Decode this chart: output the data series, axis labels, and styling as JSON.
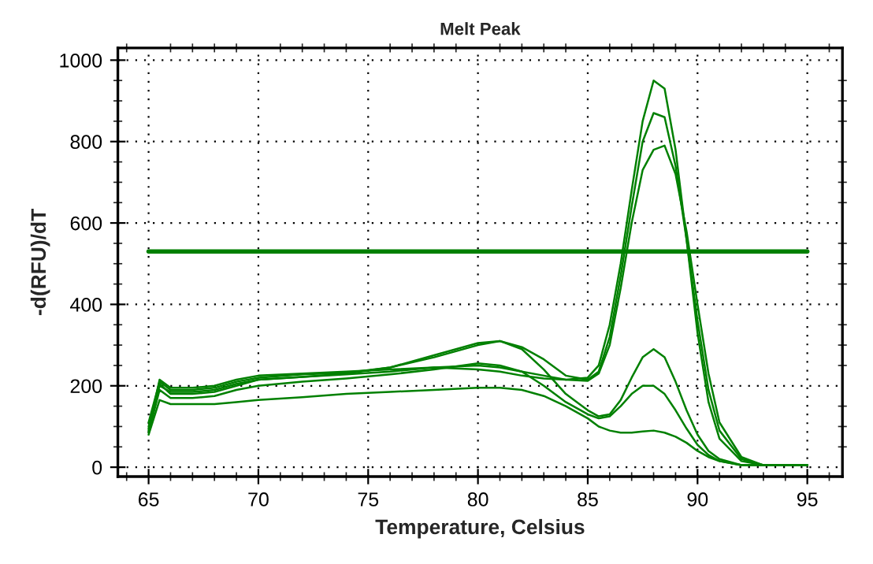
{
  "chart_data": {
    "type": "line",
    "title": "Melt Peak",
    "xlabel": "Temperature, Celsius",
    "ylabel": "-d(RFU)/dT",
    "x": [
      65,
      65.5,
      66,
      67,
      68,
      69,
      70,
      72,
      74,
      76,
      78,
      80,
      81,
      82,
      83,
      84,
      85,
      85.5,
      86,
      86.5,
      87,
      87.5,
      88,
      88.5,
      89,
      89.5,
      90,
      90.5,
      91,
      92,
      93,
      94,
      95
    ],
    "series": [
      {
        "color": "#008000",
        "values": [
          90,
          215,
          195,
          195,
          200,
          215,
          225,
          230,
          235,
          240,
          245,
          240,
          235,
          225,
          218,
          215,
          220,
          250,
          350,
          500,
          680,
          850,
          950,
          930,
          780,
          560,
          330,
          160,
          70,
          15,
          5,
          5,
          5
        ]
      },
      {
        "color": "#008000",
        "values": [
          110,
          210,
          190,
          190,
          195,
          210,
          220,
          228,
          232,
          245,
          270,
          300,
          310,
          295,
          265,
          225,
          215,
          235,
          320,
          470,
          640,
          800,
          870,
          860,
          740,
          560,
          360,
          190,
          90,
          20,
          5,
          5,
          5
        ]
      },
      {
        "color": "#008000",
        "values": [
          100,
          205,
          180,
          180,
          185,
          200,
          215,
          222,
          228,
          235,
          245,
          250,
          245,
          235,
          225,
          215,
          212,
          230,
          300,
          440,
          600,
          730,
          780,
          790,
          720,
          580,
          400,
          230,
          110,
          25,
          5,
          5,
          5
        ]
      },
      {
        "color": "#008000",
        "values": [
          95,
          200,
          185,
          185,
          190,
          205,
          215,
          222,
          230,
          245,
          275,
          305,
          310,
          290,
          240,
          180,
          140,
          125,
          130,
          165,
          220,
          270,
          290,
          270,
          210,
          140,
          80,
          40,
          20,
          5,
          5,
          5,
          5
        ]
      },
      {
        "color": "#008000",
        "values": [
          85,
          190,
          170,
          170,
          175,
          190,
          200,
          210,
          218,
          228,
          240,
          255,
          250,
          235,
          200,
          160,
          130,
          120,
          125,
          150,
          180,
          200,
          200,
          180,
          140,
          95,
          55,
          30,
          15,
          5,
          5,
          5,
          5
        ]
      },
      {
        "color": "#008000",
        "values": [
          80,
          165,
          155,
          155,
          155,
          160,
          165,
          172,
          180,
          185,
          190,
          195,
          195,
          190,
          175,
          150,
          120,
          100,
          90,
          85,
          85,
          88,
          90,
          85,
          75,
          60,
          40,
          25,
          15,
          5,
          5,
          5,
          5
        ]
      }
    ],
    "ref_lines": [
      {
        "axis": "y",
        "value": 530,
        "color": "#008000"
      }
    ],
    "xlim": [
      63.6,
      96.6
    ],
    "ylim": [
      -23,
      1030
    ],
    "xticks": [
      65,
      70,
      75,
      80,
      85,
      90,
      95
    ],
    "yticks": [
      0,
      200,
      400,
      600,
      800,
      1000
    ],
    "grid": true,
    "line_style": "solid",
    "marker": "none",
    "legend": false
  }
}
